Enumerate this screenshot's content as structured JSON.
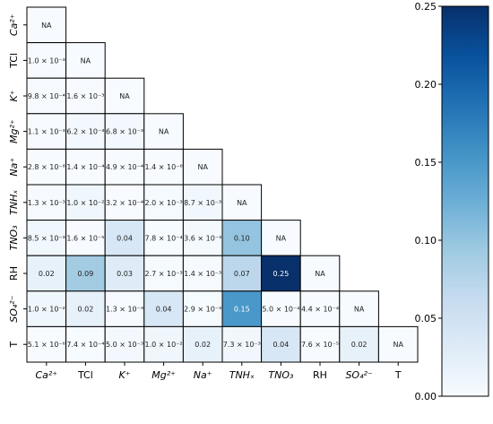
{
  "chart_data": {
    "type": "heatmap",
    "layout": "lower-triangle",
    "row_labels": [
      "Ca²⁺",
      "TCl",
      "K⁺",
      "Mg²⁺",
      "Na⁺",
      "TNHₓ",
      "TNO₃",
      "RH",
      "SO₄²⁻",
      "T"
    ],
    "col_labels": [
      "Ca²⁺",
      "TCl",
      "K⁺",
      "Mg²⁺",
      "Na⁺",
      "TNHₓ",
      "TNO₃",
      "RH",
      "SO₄²⁻",
      "T"
    ],
    "label_italic": [
      true,
      false,
      true,
      true,
      true,
      true,
      true,
      false,
      true,
      false
    ],
    "cells": [
      [
        {
          "label": "NA",
          "value": null
        }
      ],
      [
        {
          "label": "1.0 × 10⁻³",
          "value": 0.001
        },
        {
          "label": "NA",
          "value": null
        }
      ],
      [
        {
          "label": "9.8 × 10⁻⁴",
          "value": 0.00098
        },
        {
          "label": "1.6 × 10⁻³",
          "value": 0.0016
        },
        {
          "label": "NA",
          "value": null
        }
      ],
      [
        {
          "label": "1.1 × 10⁻³",
          "value": 0.0011
        },
        {
          "label": "6.2 × 10⁻³",
          "value": 0.0062
        },
        {
          "label": "6.8 × 10⁻³",
          "value": 0.0068
        },
        {
          "label": "NA",
          "value": null
        }
      ],
      [
        {
          "label": "2.8 × 10⁻⁸",
          "value": 2.8e-08
        },
        {
          "label": "1.4 × 10⁻⁴",
          "value": 0.00014
        },
        {
          "label": "4.9 × 10⁻⁴",
          "value": 0.00049
        },
        {
          "label": "1.4 × 10⁻⁶",
          "value": 1.4e-06
        },
        {
          "label": "NA",
          "value": null
        }
      ],
      [
        {
          "label": "1.3 × 10⁻³",
          "value": 0.0013
        },
        {
          "label": "1.0 × 10⁻²",
          "value": 0.01
        },
        {
          "label": "3.2 × 10⁻⁴",
          "value": 0.00032
        },
        {
          "label": "2.0 × 10⁻³",
          "value": 0.002
        },
        {
          "label": "8.7 × 10⁻³",
          "value": 0.0087
        },
        {
          "label": "NA",
          "value": null
        }
      ],
      [
        {
          "label": "8.5 × 10⁻³",
          "value": 0.0085
        },
        {
          "label": "1.6 × 10⁻⁵",
          "value": 1.6e-05
        },
        {
          "label": "0.04",
          "value": 0.04
        },
        {
          "label": "7.8 × 10⁻⁴",
          "value": 0.00078
        },
        {
          "label": "3.6 × 10⁻³",
          "value": 0.0036
        },
        {
          "label": "0.10",
          "value": 0.1
        },
        {
          "label": "NA",
          "value": null
        }
      ],
      [
        {
          "label": "0.02",
          "value": 0.02
        },
        {
          "label": "0.09",
          "value": 0.09
        },
        {
          "label": "0.03",
          "value": 0.03
        },
        {
          "label": "2.7 × 10⁻³",
          "value": 0.0027
        },
        {
          "label": "1.4 × 10⁻³",
          "value": 0.0014
        },
        {
          "label": "0.07",
          "value": 0.07
        },
        {
          "label": "0.25",
          "value": 0.25
        },
        {
          "label": "NA",
          "value": null
        }
      ],
      [
        {
          "label": "1.0 × 10⁻²",
          "value": 0.01
        },
        {
          "label": "0.02",
          "value": 0.02
        },
        {
          "label": "1.3 × 10⁻³",
          "value": 0.0013
        },
        {
          "label": "0.04",
          "value": 0.04
        },
        {
          "label": "2.9 × 10⁻³",
          "value": 0.0029
        },
        {
          "label": "0.15",
          "value": 0.15
        },
        {
          "label": "5.0 × 10⁻⁴",
          "value": 0.0005
        },
        {
          "label": "4.4 × 10⁻⁴",
          "value": 0.00044
        },
        {
          "label": "NA",
          "value": null
        }
      ],
      [
        {
          "label": "5.1 × 10⁻⁶",
          "value": 5.1e-06
        },
        {
          "label": "7.4 × 10⁻⁴",
          "value": 0.00074
        },
        {
          "label": "5.0 × 10⁻³",
          "value": 0.005
        },
        {
          "label": "1.0 × 10⁻²",
          "value": 0.01
        },
        {
          "label": "0.02",
          "value": 0.02
        },
        {
          "label": "7.3 × 10⁻³",
          "value": 0.0073
        },
        {
          "label": "0.04",
          "value": 0.04
        },
        {
          "label": "7.6 × 10⁻⁵",
          "value": 7.6e-05
        },
        {
          "label": "0.02",
          "value": 0.02
        },
        {
          "label": "NA",
          "value": null
        }
      ]
    ],
    "colorbar": {
      "min": 0.0,
      "max": 0.25,
      "ticks": [
        0.0,
        0.05,
        0.1,
        0.15,
        0.2,
        0.25
      ],
      "tick_labels": [
        "0.00",
        "0.05",
        "0.10",
        "0.15",
        "0.20",
        "0.25"
      ]
    },
    "colormap": [
      "#f7fbff",
      "#deebf7",
      "#c6dbef",
      "#9ecae1",
      "#6baed6",
      "#4292c6",
      "#2171b5",
      "#08519c",
      "#08306b"
    ],
    "grid": false,
    "title": "",
    "xlabel": "",
    "ylabel": ""
  }
}
